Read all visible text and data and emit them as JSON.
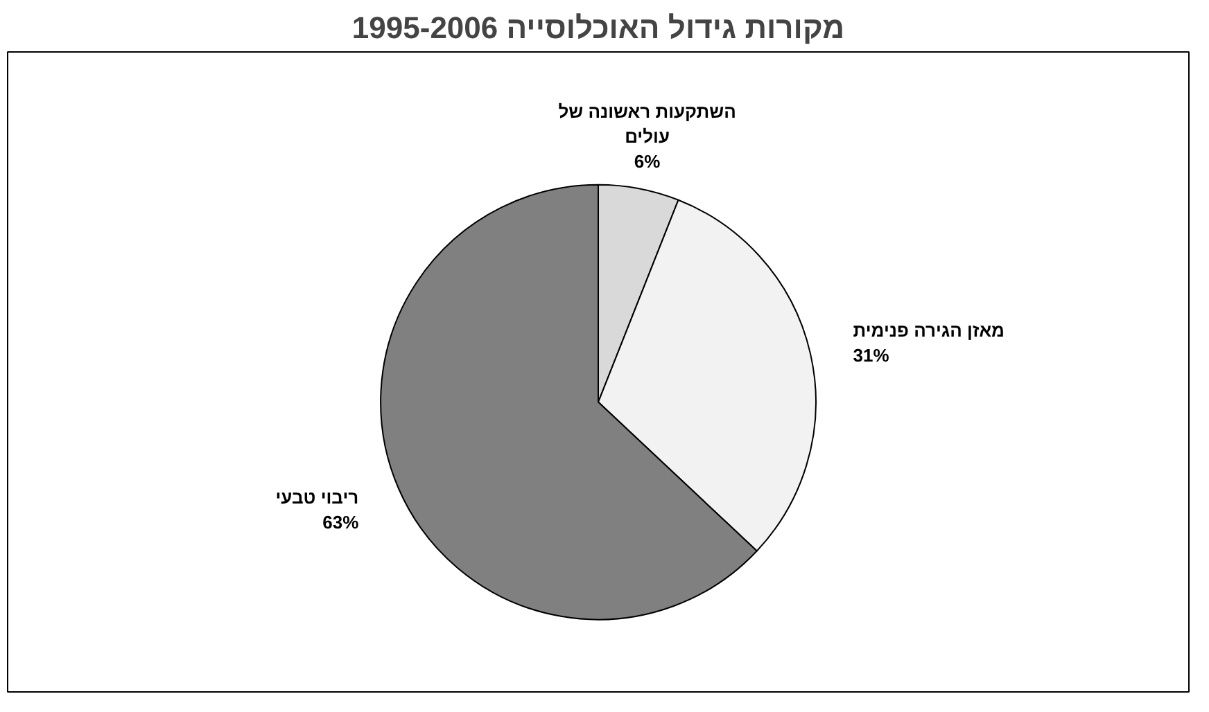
{
  "chart_data": {
    "type": "pie",
    "title": "מקורות גידול האוכלוסייה 1995-2006",
    "categories": [
      "השתקעות ראשונה של עולים",
      "מאזן הגירה פנימית",
      "ריבוי טבעי"
    ],
    "values": [
      6,
      31,
      63
    ],
    "value_labels": [
      "6%",
      "31%",
      "63%"
    ],
    "colors": [
      "#d9d9d9",
      "#f2f2f2",
      "#808080"
    ]
  }
}
